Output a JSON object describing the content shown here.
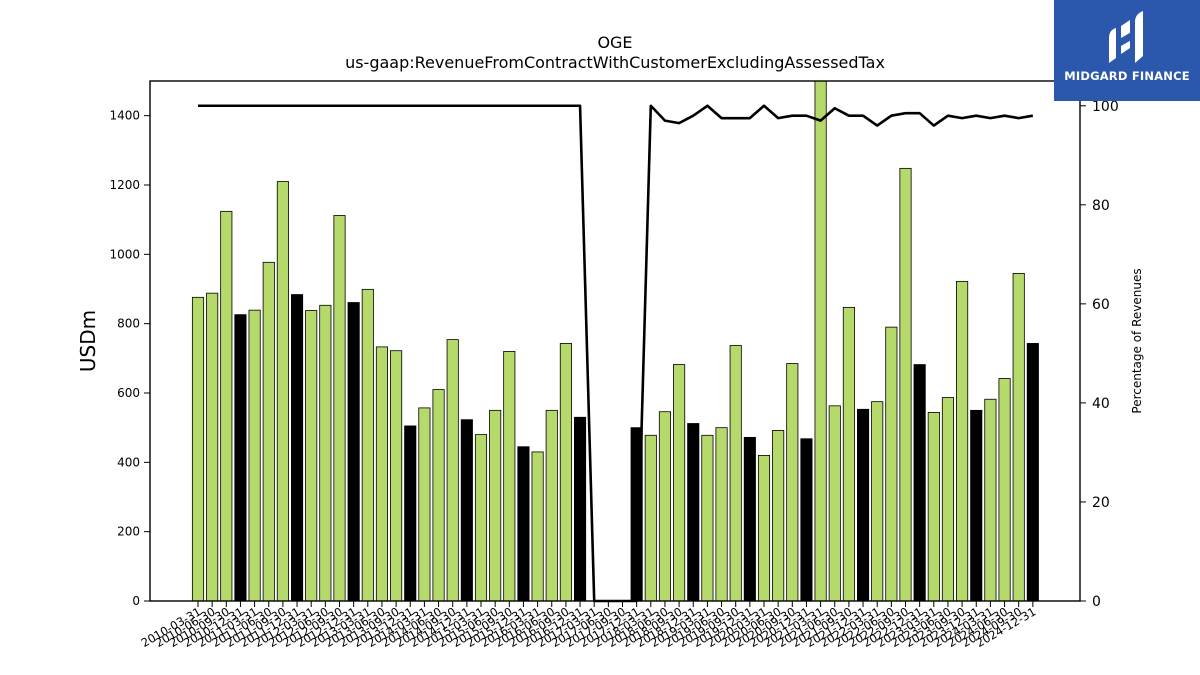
{
  "brand": {
    "name": "MIDGARD FINANCE",
    "color": "#2b57ad"
  },
  "chart_data": {
    "type": "bar",
    "title": "OGE",
    "subtitle": "us-gaap:RevenueFromContractWithCustomerExcludingAssessedTax",
    "ylabel": "USDm",
    "y2label": "Percentage of Revenues",
    "ylim": [
      0,
      1500
    ],
    "y2lim": [
      0,
      105
    ],
    "yticks": [
      0,
      200,
      400,
      600,
      800,
      1000,
      1200,
      1400
    ],
    "y2ticks": [
      0,
      20,
      40,
      60,
      80,
      100
    ],
    "grid": false,
    "colors": {
      "quarter": "#b5d96b",
      "annual": "#000000",
      "line": "#000000"
    },
    "categories": [
      "2010-03-31",
      "2010-06-30",
      "2010-09-30",
      "2010-12-31",
      "2011-03-31",
      "2011-06-30",
      "2011-09-30",
      "2011-12-31",
      "2012-03-31",
      "2012-06-30",
      "2012-09-30",
      "2012-12-31",
      "2013-03-31",
      "2013-06-30",
      "2013-09-30",
      "2013-12-31",
      "2014-03-31",
      "2014-06-30",
      "2014-09-30",
      "2014-12-31",
      "2015-03-31",
      "2015-06-30",
      "2015-09-30",
      "2015-12-31",
      "2016-03-31",
      "2016-06-30",
      "2016-09-30",
      "2016-12-31",
      "2017-03-31",
      "2017-06-30",
      "2017-09-30",
      "2017-12-31",
      "2018-03-31",
      "2018-06-30",
      "2018-09-30",
      "2018-12-31",
      "2019-03-31",
      "2019-06-30",
      "2019-09-30",
      "2019-12-31",
      "2020-03-31",
      "2020-06-30",
      "2020-09-30",
      "2020-12-31",
      "2021-03-31",
      "2021-06-30",
      "2021-09-30",
      "2021-12-31",
      "2022-03-31",
      "2022-06-30",
      "2022-09-30",
      "2022-12-31",
      "2023-03-31",
      "2023-06-30",
      "2023-09-30",
      "2023-12-31",
      "2024-03-31",
      "2024-06-30",
      "2024-09-30",
      "2024-12-31"
    ],
    "series": [
      {
        "values": [
          876,
          888,
          1124,
          826,
          839,
          977,
          1210,
          884,
          838,
          853,
          1112,
          861,
          899,
          733,
          722,
          505,
          557,
          610,
          754,
          523,
          480,
          550,
          720,
          445,
          430,
          550,
          743,
          530,
          null,
          null,
          null,
          500,
          478,
          546,
          682,
          512,
          478,
          500,
          737,
          472,
          420,
          492,
          685,
          468,
          1505,
          563,
          847,
          553,
          575,
          790,
          1248,
          682,
          544,
          587,
          922,
          550,
          582,
          642,
          945,
          743
        ],
        "annual": [
          false,
          false,
          false,
          true,
          false,
          false,
          false,
          true,
          false,
          false,
          false,
          true,
          false,
          false,
          false,
          true,
          false,
          false,
          false,
          true,
          false,
          false,
          false,
          true,
          false,
          false,
          false,
          true,
          false,
          false,
          false,
          true,
          false,
          false,
          false,
          true,
          false,
          false,
          false,
          true,
          false,
          false,
          false,
          true,
          false,
          false,
          false,
          true,
          false,
          false,
          false,
          true,
          false,
          false,
          false,
          true,
          false,
          false,
          false,
          true
        ]
      },
      {
        "name": "Percentage of Revenues",
        "values": [
          100,
          100,
          100,
          100,
          100,
          100,
          100,
          100,
          100,
          100,
          100,
          100,
          100,
          100,
          100,
          100,
          100,
          100,
          100,
          100,
          100,
          100,
          100,
          100,
          100,
          100,
          100,
          100,
          0,
          0,
          0,
          0,
          100,
          97,
          96.5,
          98,
          100,
          97.5,
          97.5,
          97.5,
          100,
          97.5,
          98,
          98,
          97,
          99.5,
          98,
          98,
          96,
          98,
          98.5,
          98.5,
          96,
          98,
          97.5,
          98,
          97.5,
          98,
          97.5,
          98
        ]
      }
    ]
  }
}
